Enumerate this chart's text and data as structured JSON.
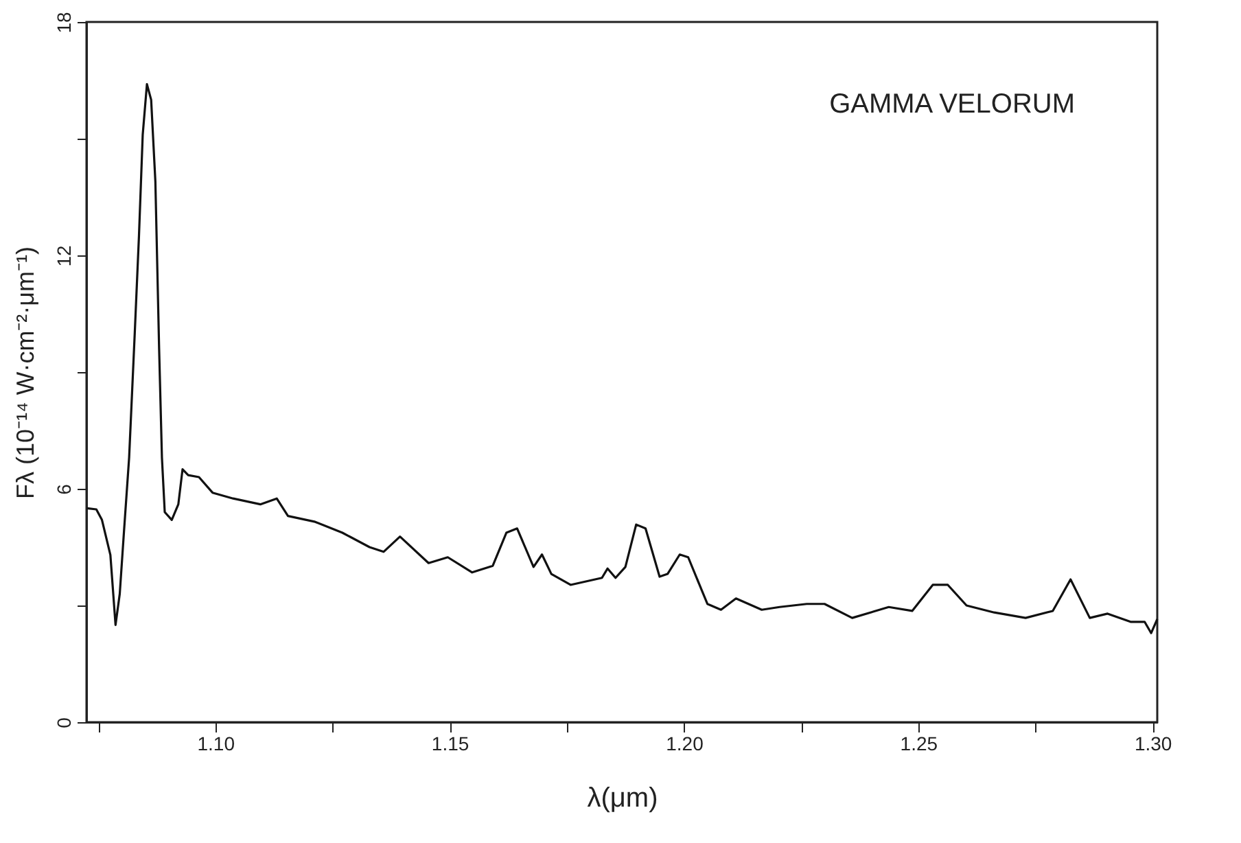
{
  "chart_data": {
    "type": "line",
    "xlabel": "λ(μm)",
    "ylabel": "Fλ (10⁻¹⁴ W·cm⁻²·μm⁻¹)",
    "annotations": [
      "GAMMA VELORUM"
    ],
    "x": [
      1.0726,
      1.0746,
      1.0758,
      1.0776,
      1.0787,
      1.0796,
      1.0805,
      1.0816,
      1.0828,
      1.0837,
      1.0845,
      1.0854,
      1.0863,
      1.0872,
      1.088,
      1.0886,
      1.0892,
      1.0907,
      1.0921,
      1.093,
      1.0942,
      1.0965,
      1.0994,
      1.1038,
      1.1096,
      1.1131,
      1.1155,
      1.1213,
      1.1271,
      1.1329,
      1.1359,
      1.1394,
      1.1455,
      1.1496,
      1.1548,
      1.1592,
      1.1621,
      1.1644,
      1.1679,
      1.1697,
      1.1717,
      1.1758,
      1.1825,
      1.1837,
      1.1854,
      1.1875,
      1.1898,
      1.1918,
      1.1948,
      1.1965,
      1.1991,
      1.2009,
      1.2038,
      1.205,
      1.2079,
      1.2111,
      1.2166,
      1.2204,
      1.2262,
      1.23,
      1.2359,
      1.2437,
      1.2487,
      1.2531,
      1.2563,
      1.2603,
      1.2662,
      1.2729,
      1.2787,
      1.2825,
      1.2866,
      1.2904,
      1.2953,
      1.2983,
      1.2997,
      1.301
    ],
    "series": [
      {
        "color": "#111111",
        "values": [
          5.5,
          5.47,
          5.2,
          4.3,
          2.5,
          3.3,
          4.9,
          6.8,
          10,
          12.5,
          15.1,
          16.4,
          16.0,
          13.9,
          9.6,
          6.8,
          5.4,
          5.2,
          5.6,
          6.5,
          6.35,
          6.3,
          5.9,
          5.75,
          5.6,
          5.75,
          5.3,
          5.15,
          4.87,
          4.5,
          4.38,
          4.77,
          4.09,
          4.24,
          3.85,
          4.02,
          4.87,
          4.98,
          3.99,
          4.31,
          3.81,
          3.53,
          3.71,
          3.95,
          3.71,
          3.99,
          5.08,
          4.98,
          3.74,
          3.81,
          4.31,
          4.24,
          3.39,
          3.04,
          2.89,
          3.18,
          2.89,
          2.96,
          3.04,
          3.04,
          2.68,
          2.96,
          2.86,
          3.53,
          3.53,
          3.0,
          2.82,
          2.68,
          2.86,
          3.67,
          2.68,
          2.79,
          2.58,
          2.58,
          2.29,
          2.65
        ]
      }
    ],
    "xlim": [
      1.0725,
      1.301
    ],
    "ylim": [
      0,
      18
    ],
    "xticks": [
      {
        "value": 1.075,
        "label": null
      },
      {
        "value": 1.1,
        "label": "1.10"
      },
      {
        "value": 1.125,
        "label": null
      },
      {
        "value": 1.15,
        "label": "1.15"
      },
      {
        "value": 1.175,
        "label": null
      },
      {
        "value": 1.2,
        "label": "1.20"
      },
      {
        "value": 1.225,
        "label": null
      },
      {
        "value": 1.25,
        "label": "1.25"
      },
      {
        "value": 1.275,
        "label": null
      },
      {
        "value": 1.3,
        "label": "1.30"
      }
    ],
    "yticks": [
      0,
      {
        "value": 3,
        "label": null
      },
      6,
      {
        "value": 9,
        "label": null
      },
      12,
      {
        "value": 15,
        "label": null
      },
      18
    ],
    "grid": false,
    "marker": "none",
    "line_style": "solid"
  }
}
